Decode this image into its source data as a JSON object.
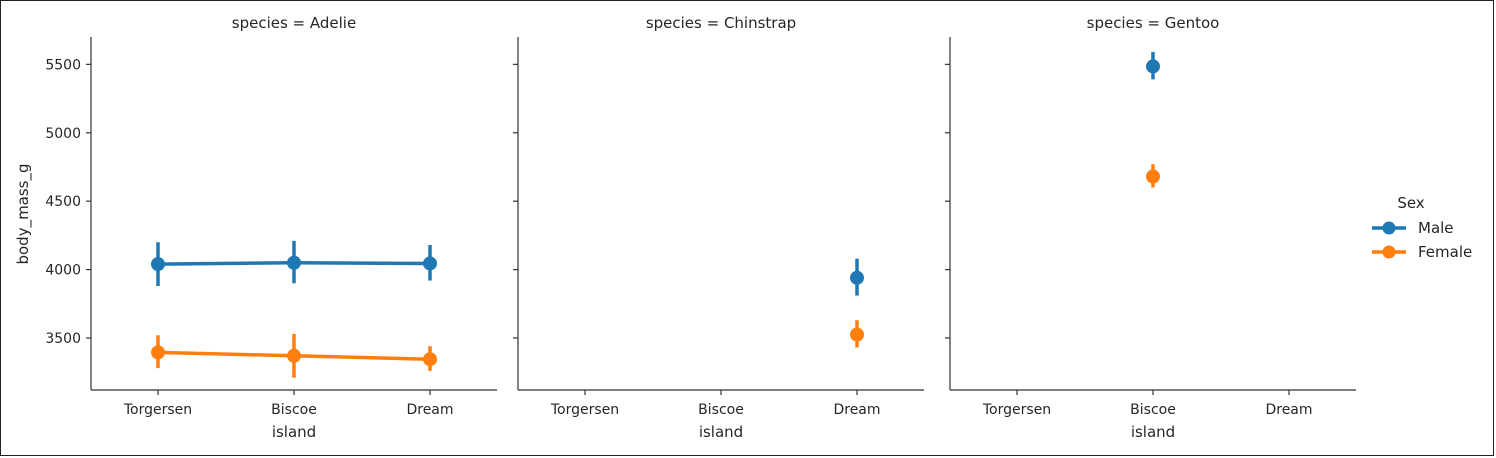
{
  "chart_data": {
    "type": "line",
    "ylabel": "body_mass_g",
    "xlabel": "island",
    "categories": [
      "Torgersen",
      "Biscoe",
      "Dream"
    ],
    "yticks": [
      3500,
      4000,
      4500,
      5000,
      5500
    ],
    "ylim": [
      3120,
      5700
    ],
    "legend": {
      "title": "Sex",
      "placement": "right",
      "entries": [
        {
          "name": "Male",
          "color": "#1f77b4"
        },
        {
          "name": "Female",
          "color": "#ff7f0e"
        }
      ]
    },
    "facets": [
      {
        "title": "species = Adelie",
        "series": [
          {
            "name": "Male",
            "color": "#1f77b4",
            "values": [
              4040,
              4050,
              4045
            ],
            "lower": [
              3880,
              3900,
              3920
            ],
            "upper": [
              4200,
              4210,
              4180
            ]
          },
          {
            "name": "Female",
            "color": "#ff7f0e",
            "values": [
              3395,
              3370,
              3345
            ],
            "lower": [
              3280,
              3210,
              3260
            ],
            "upper": [
              3520,
              3530,
              3440
            ]
          }
        ]
      },
      {
        "title": "species = Chinstrap",
        "series": [
          {
            "name": "Male",
            "color": "#1f77b4",
            "values": [
              null,
              null,
              3940
            ],
            "lower": [
              null,
              null,
              3810
            ],
            "upper": [
              null,
              null,
              4080
            ]
          },
          {
            "name": "Female",
            "color": "#ff7f0e",
            "values": [
              null,
              null,
              3525
            ],
            "lower": [
              null,
              null,
              3430
            ],
            "upper": [
              null,
              null,
              3630
            ]
          }
        ]
      },
      {
        "title": "species = Gentoo",
        "series": [
          {
            "name": "Male",
            "color": "#1f77b4",
            "values": [
              null,
              5485,
              null
            ],
            "lower": [
              null,
              5390,
              null
            ],
            "upper": [
              null,
              5590,
              null
            ]
          },
          {
            "name": "Female",
            "color": "#ff7f0e",
            "values": [
              null,
              4680,
              null
            ],
            "lower": [
              null,
              4600,
              null
            ],
            "upper": [
              null,
              4770,
              null
            ]
          }
        ]
      }
    ]
  }
}
